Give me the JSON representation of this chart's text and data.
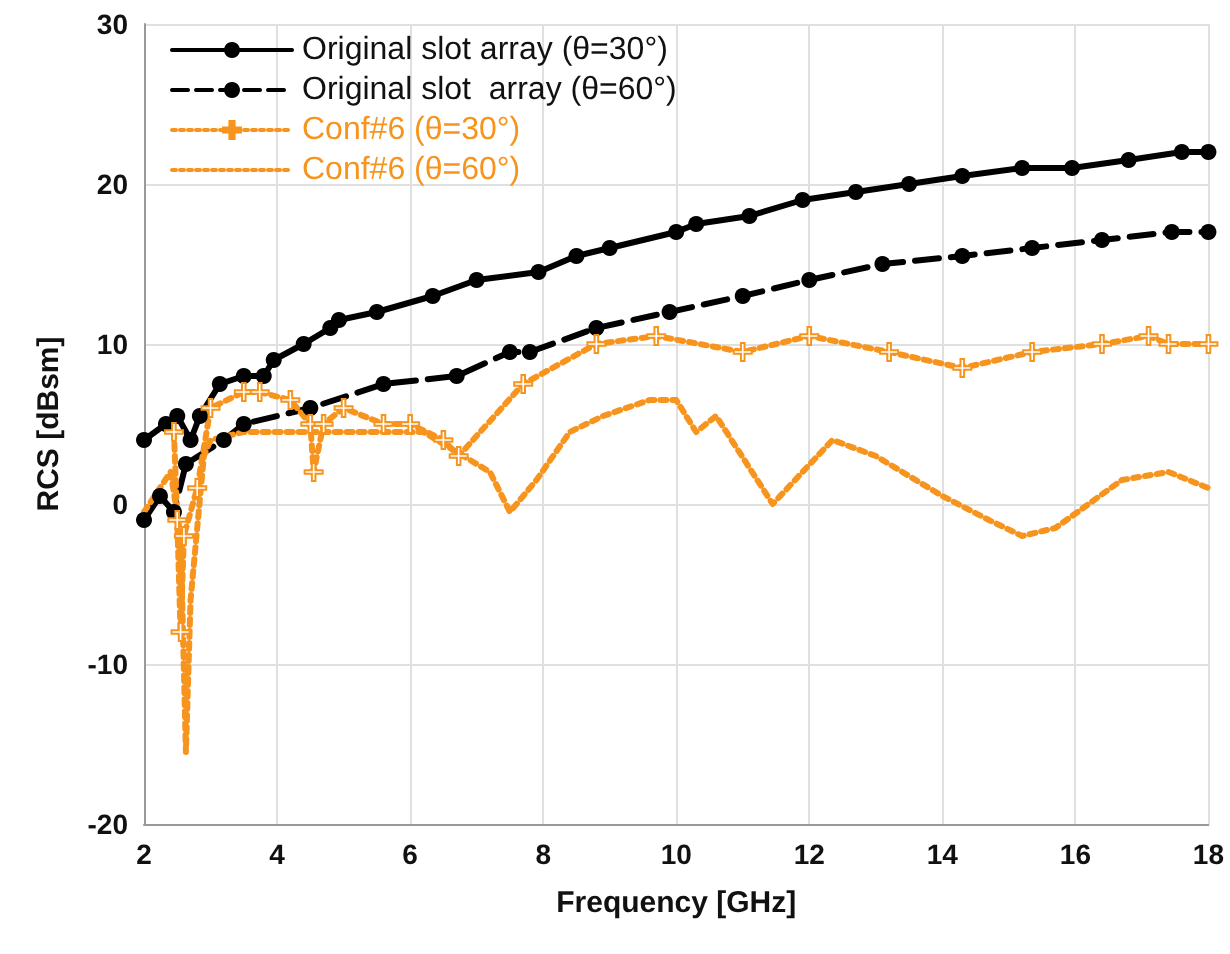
{
  "chart_data": {
    "type": "line",
    "xlabel": "Frequency [GHz]",
    "ylabel": "RCS [dBsm]",
    "xlim": [
      2,
      18
    ],
    "xticks": [
      2,
      4,
      6,
      8,
      10,
      12,
      14,
      16,
      18
    ],
    "ylim": [
      -20,
      30
    ],
    "yticks": [
      -20,
      -10,
      0,
      10,
      20,
      30
    ],
    "grid": true,
    "legend": "top left",
    "series": [
      {
        "name": "Original slot array (θ=30°)",
        "color": "#000000",
        "marker": "circle",
        "line_style": "solid",
        "x": [
          2,
          2.33,
          2.5,
          2.7,
          2.84,
          3.14,
          3.5,
          3.8,
          3.95,
          4.4,
          4.8,
          4.93,
          5.5,
          6.34,
          7,
          7.93,
          8.5,
          9,
          10,
          10.3,
          11.1,
          11.9,
          12.7,
          13.5,
          14.3,
          15.2,
          15.95,
          16.8,
          17.6,
          18
        ],
        "values": [
          4,
          5,
          5.5,
          4,
          5.5,
          7.5,
          8,
          8,
          9,
          10,
          11,
          11.5,
          12,
          13,
          14,
          14.5,
          15.5,
          16,
          17,
          17.5,
          18,
          19,
          19.5,
          20,
          20.5,
          21,
          21,
          21.5,
          22,
          22
        ]
      },
      {
        "name": "Original slot  array (θ=60°)",
        "color": "#000000",
        "marker": "circle",
        "line_style": "dashed",
        "x": [
          2,
          2.24,
          2.45,
          2.63,
          3.2,
          3.5,
          4.5,
          5.6,
          6.7,
          7.5,
          7.8,
          8.8,
          9.9,
          11,
          12,
          13.1,
          14.3,
          15.35,
          16.4,
          17.45,
          18
        ],
        "values": [
          -1,
          0.5,
          -0.5,
          2.5,
          4,
          5,
          6,
          7.5,
          8,
          9.5,
          9.5,
          11,
          12,
          13,
          14,
          15,
          15.5,
          16,
          16.5,
          17,
          17
        ]
      },
      {
        "name": "Conf#6 (θ=30°)",
        "color": "#f7941d",
        "marker": "cross",
        "line_style": "dotted",
        "x": [
          2.45,
          2.5,
          2.55,
          2.6,
          2.8,
          3,
          3.5,
          3.74,
          4.2,
          4.5,
          4.55,
          4.7,
          5,
          5.6,
          6,
          6.5,
          6.73,
          7.7,
          8.8,
          9.7,
          11,
          12,
          13.2,
          14.3,
          15.35,
          16.4,
          17.1,
          17.4,
          18
        ],
        "values": [
          4.5,
          -1,
          -8,
          -2,
          1,
          6,
          7,
          7,
          6.5,
          5,
          2,
          5,
          6,
          5,
          5,
          4,
          3,
          7.5,
          10,
          10.5,
          9.5,
          10.5,
          9.5,
          8.5,
          9.5,
          10,
          10.5,
          10,
          10
        ]
      },
      {
        "name": "Conf#6 (θ=60°)",
        "color": "#f7941d",
        "marker": "none",
        "line_style": "dotted",
        "x": [
          2,
          2.4,
          2.55,
          2.63,
          2.7,
          2.8,
          2.9,
          3,
          3.5,
          4,
          5,
          6.2,
          6.6,
          7.2,
          7.5,
          7.9,
          8.4,
          8.9,
          9.6,
          10,
          10.3,
          10.6,
          11.45,
          12.35,
          13,
          14,
          14.7,
          15.2,
          15.7,
          16.7,
          17.4,
          18
        ],
        "values": [
          -0.5,
          2,
          -2,
          -15.5,
          -6,
          -1.5,
          3,
          4,
          4.5,
          4.5,
          4.5,
          4.5,
          3.5,
          2,
          -0.5,
          1.5,
          4.5,
          5.5,
          6.5,
          6.5,
          4.5,
          5.5,
          0,
          4,
          3,
          0.5,
          -1,
          -2,
          -1.5,
          1.5,
          2,
          1
        ]
      }
    ]
  }
}
